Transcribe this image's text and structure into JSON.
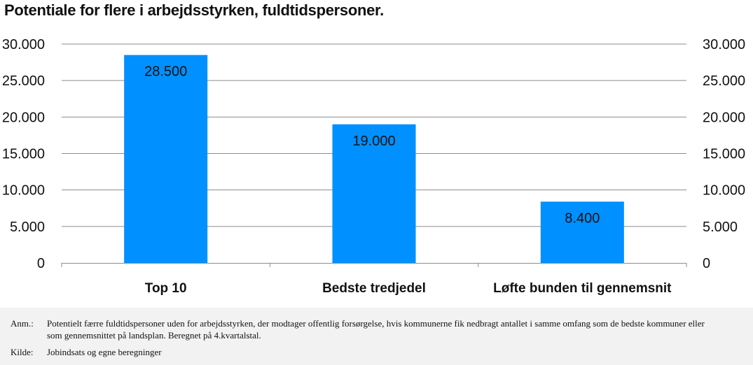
{
  "chart_data": {
    "type": "bar",
    "title": "Potentiale for flere i arbejdsstyrken, fuldtidspersoner.",
    "categories": [
      "Top 10",
      "Bedste tredjedel",
      "Løfte bunden til gennemsnit"
    ],
    "values": [
      28500,
      19000,
      8400
    ],
    "data_labels": [
      "28.500",
      "19.000",
      "8.400"
    ],
    "ylim": [
      0,
      30000
    ],
    "yticks": [
      0,
      5000,
      10000,
      15000,
      20000,
      25000,
      30000
    ],
    "ytick_labels": [
      "0",
      "5.000",
      "10.000",
      "15.000",
      "20.000",
      "25.000",
      "30.000"
    ],
    "secondary_axis": true,
    "grid": true,
    "bar_color": "#0090ff"
  },
  "notes": {
    "anm_key": "Anm.:",
    "anm_text": "Potentielt færre fuldtidspersoner uden for arbejdsstyrken, der modtager offentlig forsørgelse, hvis kommunerne fik nedbragt antallet i samme omfang som de bedste kommuner eller som gennemsnittet på landsplan. Beregnet på 4.kvartalstal.",
    "kilde_key": "Kilde:",
    "kilde_text": "Jobindsats og egne beregninger"
  }
}
